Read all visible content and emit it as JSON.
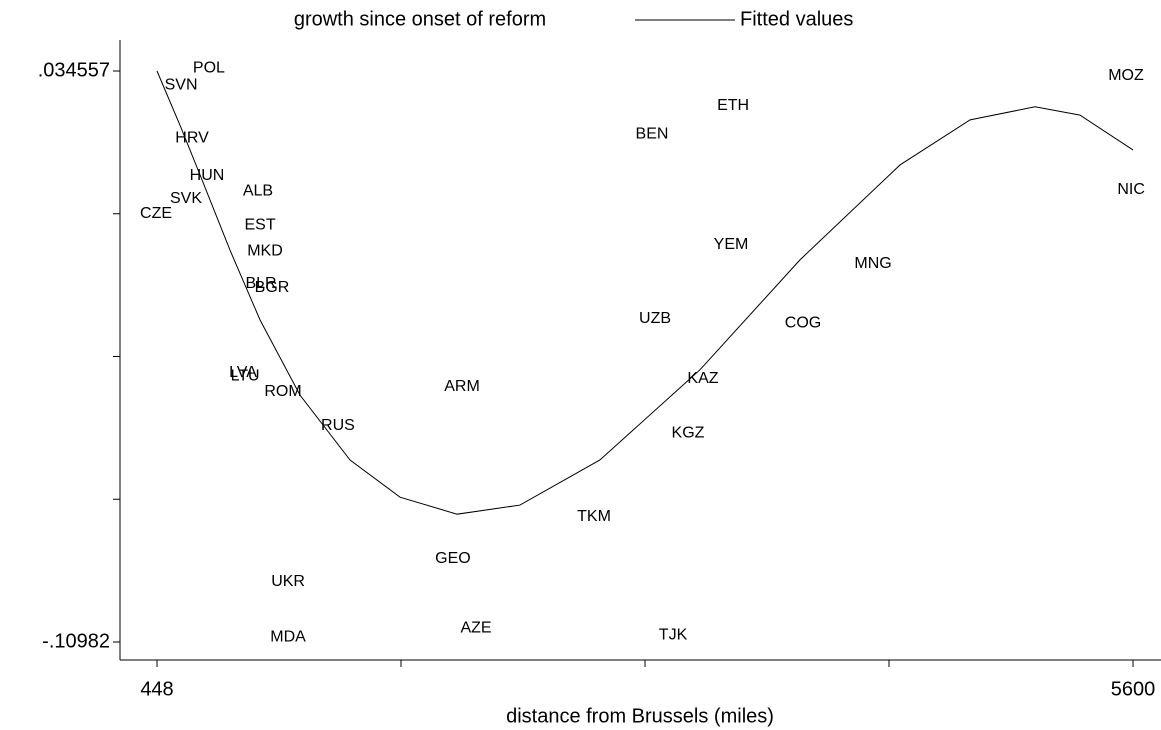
{
  "chart_data": {
    "type": "scatter",
    "xlabel": "distance from Brussels (miles)",
    "xlim": [
      448,
      5600
    ],
    "xticks": [
      448,
      5600
    ],
    "xminor_ticks": [
      1736,
      3024,
      4312
    ],
    "ylim": [
      -0.10982,
      0.034557
    ],
    "yticks": [
      {
        "value": 0.034557,
        "label": ".034557"
      },
      {
        "value": -0.10982,
        "label": "-.10982"
      }
    ],
    "yminor_ticks": [
      -0.001537,
      -0.037631,
      -0.073726
    ],
    "grid": false,
    "legend": "top",
    "series": [
      {
        "name": "growth since onset of reform",
        "type": "scatter",
        "color": "#000000",
        "labels": [
          "POL",
          "SVN",
          "HRV",
          "HUN",
          "SVK",
          "ALB",
          "CZE",
          "EST",
          "MKD",
          "BLR",
          "BGR",
          "LVA",
          "LTU",
          "ROM",
          "RUS",
          "ARM",
          "UKR",
          "MDA",
          "GEO",
          "AZE",
          "TKM",
          "TJK",
          "UZB",
          "KAZ",
          "KGZ",
          "BEN",
          "ETH",
          "YEM",
          "MNG",
          "COG",
          "MOZ",
          "NIC"
        ],
        "x": [
          722,
          575,
          633,
          712,
          601,
          981,
          443,
          992,
          1018,
          997,
          1055,
          902,
          913,
          1113,
          1403,
          2058,
          1140,
          1140,
          2010,
          2132,
          2755,
          3172,
          3077,
          3330,
          3251,
          3061,
          3489,
          3478,
          4228,
          3858,
          5563,
          5590
        ],
        "values": [
          0.0353,
          0.031,
          0.0176,
          0.008,
          0.0022,
          0.0042,
          -0.0016,
          -0.0044,
          -0.011,
          -0.0193,
          -0.0203,
          -0.0418,
          -0.0426,
          -0.0466,
          -0.0552,
          -0.0453,
          -0.0946,
          -0.1086,
          -0.0888,
          -0.1063,
          -0.0782,
          -0.1081,
          -0.0281,
          -0.0433,
          -0.057,
          0.0186,
          0.0257,
          -0.0094,
          -0.0142,
          -0.0292,
          0.0333,
          0.0045
        ]
      },
      {
        "name": "Fitted values",
        "type": "line",
        "color": "#000000",
        "x": [
          448,
          569,
          675,
          833,
          992,
          1203,
          1467,
          1731,
          2032,
          2364,
          2786,
          3314,
          3842,
          4370,
          4740,
          5083,
          5320,
          5600
        ],
        "values": [
          0.034557,
          0.0209,
          0.0083,
          -0.0107,
          -0.0284,
          -0.0474,
          -0.0638,
          -0.0732,
          -0.0775,
          -0.0752,
          -0.0638,
          -0.041,
          -0.0132,
          0.0108,
          0.0222,
          0.0255,
          0.0234,
          0.0146
        ]
      }
    ]
  }
}
